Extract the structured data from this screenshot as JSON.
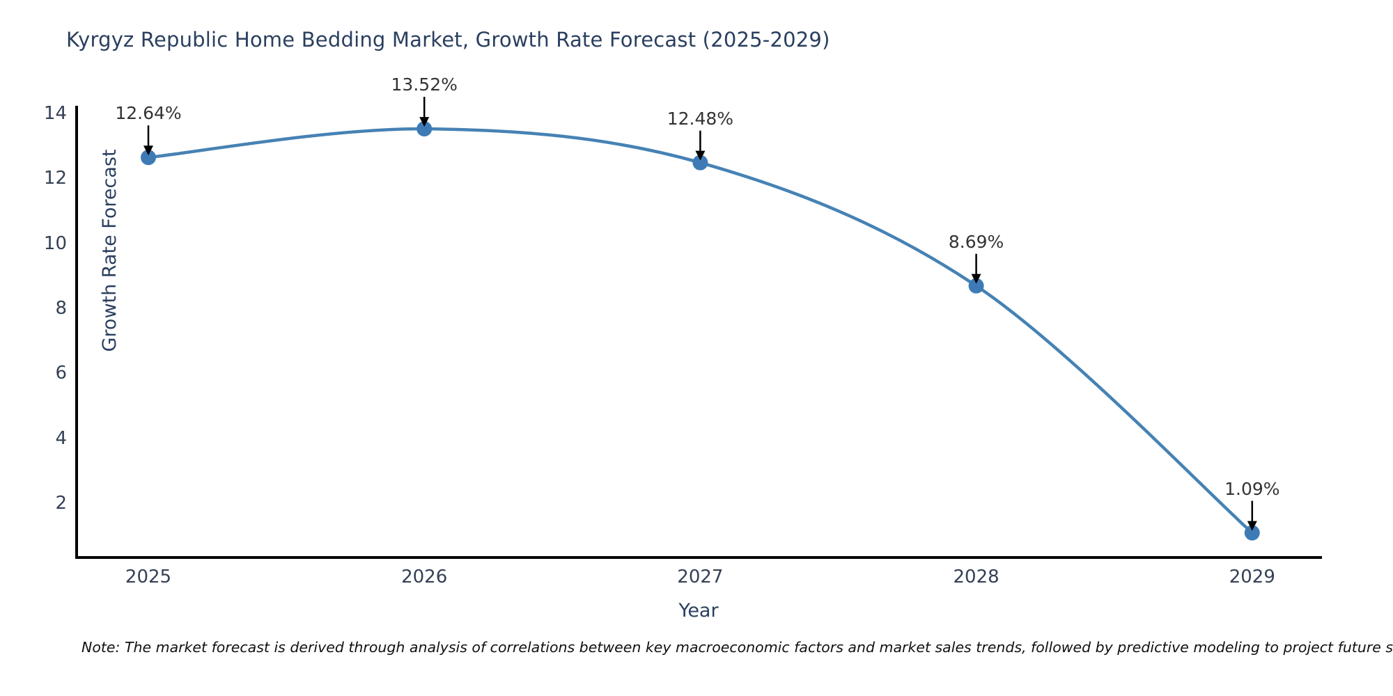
{
  "title": "Kyrgyz Republic Home Bedding Market, Growth Rate Forecast (2025-2029)",
  "x_axis": {
    "title": "Year",
    "ticks": [
      "2025",
      "2026",
      "2027",
      "2028",
      "2029"
    ]
  },
  "y_axis": {
    "title": "Growth Rate Forecast",
    "ticks": [
      2,
      4,
      6,
      8,
      10,
      12,
      14
    ]
  },
  "note": "Note: The market forecast is derived through analysis of correlations between key macroeconomic factors and market sales trends, followed by predictive modeling to project future sales.",
  "chart_data": {
    "type": "line",
    "title": "Kyrgyz Republic Home Bedding Market, Growth Rate Forecast (2025-2029)",
    "x": [
      2025,
      2026,
      2027,
      2028,
      2029
    ],
    "series": [
      {
        "name": "Growth Rate Forecast",
        "values": [
          12.64,
          13.52,
          12.48,
          8.69,
          1.09
        ]
      }
    ],
    "data_labels": [
      "12.64%",
      "13.52%",
      "12.48%",
      "8.69%",
      "1.09%"
    ],
    "xlabel": "Year",
    "ylabel": "Growth Rate Forecast",
    "ylim": [
      0.4,
      14.2
    ],
    "grid": false,
    "legend": "none",
    "annotation_style": "value label with downward black arrow to marker"
  },
  "colors": {
    "line": "#4682b4",
    "marker": "#3e7bb6",
    "axis": "#000000",
    "arrow": "#000000",
    "title_text": "#2a3f5f",
    "tick_text": "#344055",
    "annotation_text": "#333333",
    "background": "#ffffff"
  }
}
